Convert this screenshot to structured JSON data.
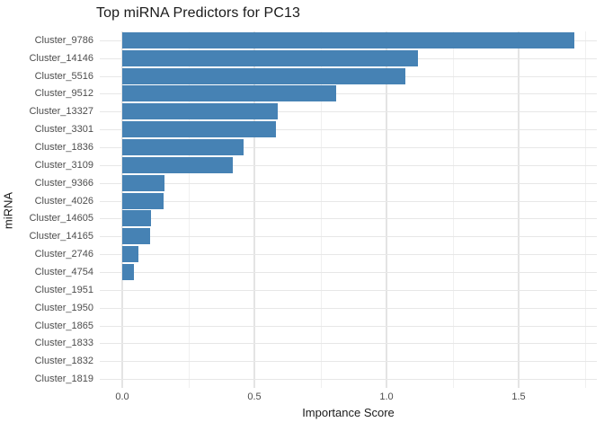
{
  "chart_data": {
    "type": "bar",
    "orientation": "horizontal",
    "title": "Top miRNA Predictors for PC13",
    "xlabel": "Importance Score",
    "ylabel": "miRNA",
    "categories": [
      "Cluster_9786",
      "Cluster_14146",
      "Cluster_5516",
      "Cluster_9512",
      "Cluster_13327",
      "Cluster_3301",
      "Cluster_1836",
      "Cluster_3109",
      "Cluster_9366",
      "Cluster_4026",
      "Cluster_14605",
      "Cluster_14165",
      "Cluster_2746",
      "Cluster_4754",
      "Cluster_1951",
      "Cluster_1950",
      "Cluster_1865",
      "Cluster_1833",
      "Cluster_1832",
      "Cluster_1819"
    ],
    "values": [
      1.71,
      1.12,
      1.07,
      0.81,
      0.59,
      0.58,
      0.46,
      0.42,
      0.16,
      0.155,
      0.11,
      0.105,
      0.06,
      0.045,
      0,
      0,
      0,
      0,
      0,
      0
    ],
    "xlim": [
      0,
      1.8
    ],
    "x_major_ticks": [
      0.0,
      0.5,
      1.0,
      1.5
    ],
    "x_major_tick_labels": [
      "0.0",
      "0.5",
      "1.0",
      "1.5"
    ],
    "x_minor_ticks": [
      0.25,
      0.75,
      1.25,
      1.75
    ],
    "grid": "on",
    "legend": "none",
    "colors": {
      "bar_fill": "#4682B4",
      "grid_major": "#e4e4e4",
      "grid_minor": "#f0f0f0",
      "tick_label_text": "#4d4d4d",
      "title_text": "#1a1a1a",
      "background": "#ffffff"
    }
  }
}
